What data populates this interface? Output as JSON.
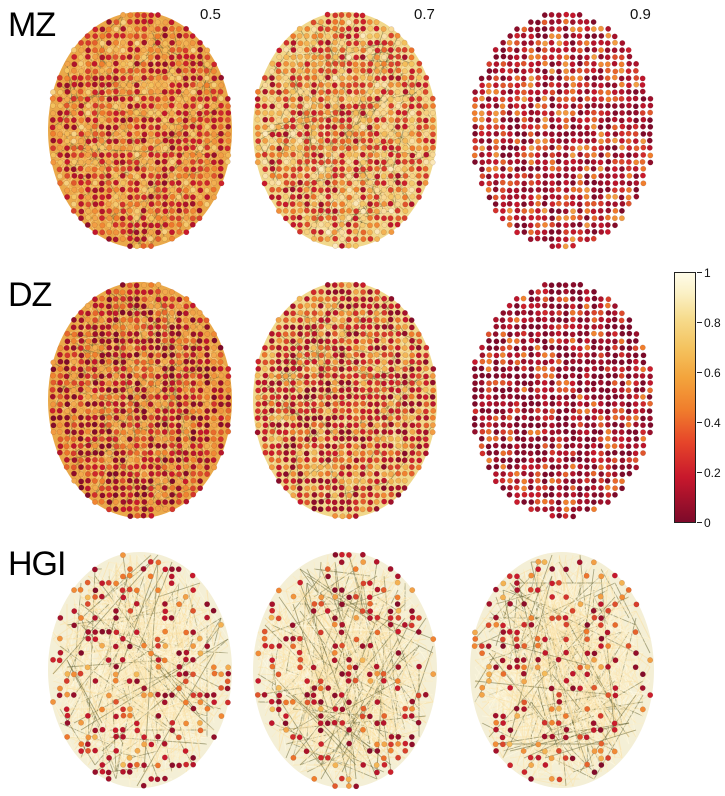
{
  "rows": [
    {
      "label": "MZ"
    },
    {
      "label": "DZ"
    },
    {
      "label": "HGI"
    }
  ],
  "thresholds": [
    "0.5",
    "0.7",
    "0.9"
  ],
  "colorbar": {
    "min": 0,
    "max": 1,
    "ticks": [
      "0",
      "0.2",
      "0.4",
      "0.6",
      "0.8",
      "1"
    ],
    "colors": [
      "#7d0a2a",
      "#c8182c",
      "#f07d2c",
      "#f4c35f",
      "#fffce9"
    ]
  }
}
